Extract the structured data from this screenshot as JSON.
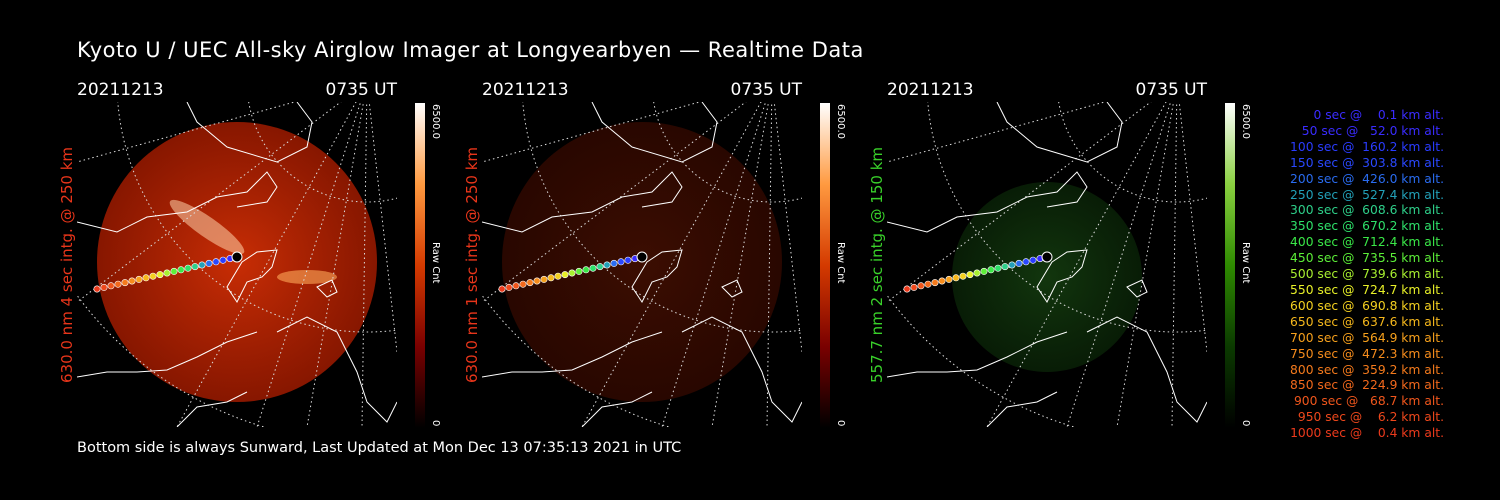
{
  "title": "Kyoto U / UEC All-sky Airglow Imager at Longyearbyen — Realtime Data",
  "footer": "Bottom side is always Sunward, Last Updated at Mon Dec 13 07:35:13 2021 in UTC",
  "panels": [
    {
      "date": "20211213",
      "time": "0735 UT",
      "ylabel": "630.0 nm 4 sec intg. @ 250 km",
      "label_color": "#e8351a",
      "cbar_max": "6500.0",
      "cbar_label": "Raw Cnt",
      "cbar_min": "0",
      "tint": "red",
      "intensity": 1.0
    },
    {
      "date": "20211213",
      "time": "0735 UT",
      "ylabel": "630.0 nm 1 sec intg. @ 250 km",
      "label_color": "#e8351a",
      "cbar_max": "6500.0",
      "cbar_label": "Raw Cnt",
      "cbar_min": "0",
      "tint": "red",
      "intensity": 0.3
    },
    {
      "date": "20211213",
      "time": "0735 UT",
      "ylabel": "557.7 nm 2 sec intg. @ 150 km",
      "label_color": "#39d12a",
      "cbar_max": "6500.0",
      "cbar_label": "Raw Cnt",
      "cbar_min": "0",
      "tint": "green",
      "intensity": 0.45
    }
  ],
  "legend": [
    {
      "text": "   0 sec @    0.1 km alt.",
      "color": "#3a2cff"
    },
    {
      "text": "  50 sec @   52.0 km alt.",
      "color": "#3a2cff"
    },
    {
      "text": " 100 sec @  160.2 km alt.",
      "color": "#2a3cff"
    },
    {
      "text": " 150 sec @  303.8 km alt.",
      "color": "#2a48ff"
    },
    {
      "text": " 200 sec @  426.0 km alt.",
      "color": "#2a6cf0"
    },
    {
      "text": " 250 sec @  527.4 km alt.",
      "color": "#22a0b8"
    },
    {
      "text": " 300 sec @  608.6 km alt.",
      "color": "#2ed08a"
    },
    {
      "text": " 350 sec @  670.2 km alt.",
      "color": "#2ee06a"
    },
    {
      "text": " 400 sec @  712.4 km alt.",
      "color": "#3ae848"
    },
    {
      "text": " 450 sec @  735.5 km alt.",
      "color": "#5cee38"
    },
    {
      "text": " 500 sec @  739.6 km alt.",
      "color": "#a8f030"
    },
    {
      "text": " 550 sec @  724.7 km alt.",
      "color": "#e8f028"
    },
    {
      "text": " 600 sec @  690.8 km alt.",
      "color": "#f4d020"
    },
    {
      "text": " 650 sec @  637.6 km alt.",
      "color": "#f6b81c"
    },
    {
      "text": " 700 sec @  564.9 km alt.",
      "color": "#f6a01c"
    },
    {
      "text": " 750 sec @  472.3 km alt.",
      "color": "#f68c1c"
    },
    {
      "text": " 800 sec @  359.2 km alt.",
      "color": "#f47a1c"
    },
    {
      "text": " 850 sec @  224.9 km alt.",
      "color": "#f2681c"
    },
    {
      "text": " 900 sec @   68.7 km alt.",
      "color": "#f0561c"
    },
    {
      "text": " 950 sec @    6.2 km alt.",
      "color": "#ee481c"
    },
    {
      "text": "1000 sec @    0.4 km alt.",
      "color": "#ec3a1c"
    }
  ]
}
